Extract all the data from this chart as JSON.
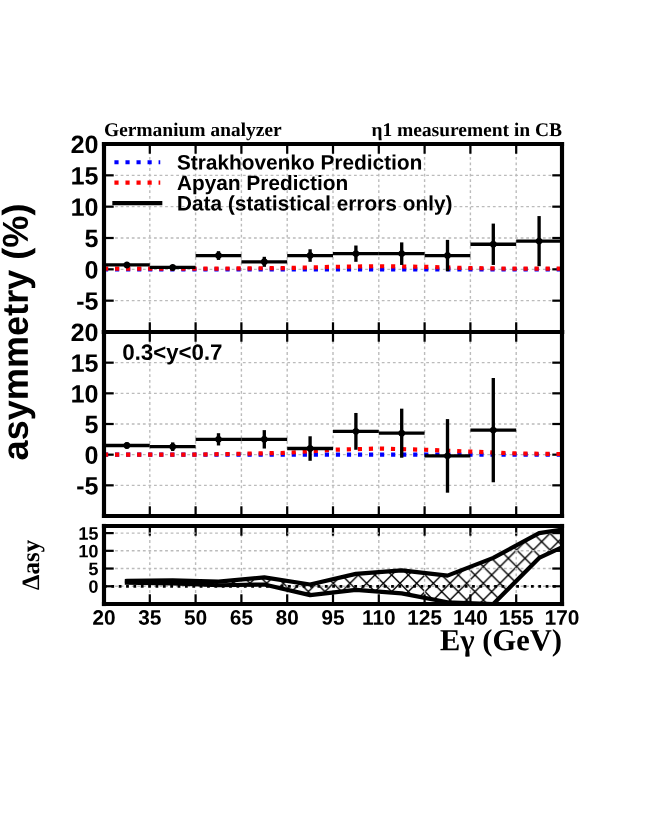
{
  "chart_data": [
    {
      "type": "scatter",
      "title": "Germanium analyzer",
      "subtitle": "η1 measurement in CB",
      "ylabel": "asymmetry (%)",
      "xlim": [
        20,
        170
      ],
      "xticks": [
        20,
        35,
        50,
        65,
        80,
        95,
        110,
        125,
        140,
        155,
        170
      ],
      "ylim": [
        -10,
        20
      ],
      "yticks": [
        -5,
        0,
        5,
        10,
        15,
        20
      ],
      "tick_labels": "y",
      "grid": true,
      "legend": "top left",
      "series": [
        {
          "name": "Strakhovenko Prediction",
          "type": "line",
          "line_style": "dotted",
          "color": "#0000ff",
          "x": [
            20,
            50,
            80,
            110,
            140,
            170
          ],
          "values": [
            0,
            0,
            0,
            0,
            0,
            0
          ]
        },
        {
          "name": "Apyan Prediction",
          "type": "line",
          "line_style": "dotted",
          "color": "#ff0000",
          "x": [
            20,
            50,
            80,
            95,
            110,
            125,
            140,
            155,
            170
          ],
          "values": [
            0.1,
            0.1,
            0.2,
            0.4,
            0.5,
            0.4,
            0.2,
            0.1,
            0.1
          ]
        },
        {
          "name": "Data (statistical errors only)",
          "color": "#000000",
          "x": [
            27.5,
            42.5,
            57.5,
            72.5,
            87.5,
            102.5,
            117.5,
            132.5,
            147.5,
            162.5
          ],
          "values": [
            0.7,
            0.3,
            2.2,
            1.2,
            2.2,
            2.5,
            2.5,
            2.2,
            4,
            4.5
          ],
          "errors": [
            0.3,
            0.3,
            0.7,
            0.8,
            1,
            1.3,
            1.8,
            2.5,
            3.3,
            4
          ],
          "xerrors": [
            7.5,
            7.5,
            7.5,
            7.5,
            7.5,
            7.5,
            7.5,
            7.5,
            7.5,
            7.5
          ]
        }
      ]
    },
    {
      "type": "scatter",
      "annotations": [
        "0.3<y<0.7"
      ],
      "xlim": [
        20,
        170
      ],
      "xticks": [
        20,
        35,
        50,
        65,
        80,
        95,
        110,
        125,
        140,
        155,
        170
      ],
      "ylim": [
        -10,
        20
      ],
      "yticks": [
        -5,
        0,
        5,
        10,
        15,
        20
      ],
      "tick_labels": "y",
      "grid": true,
      "series": [
        {
          "type": "line",
          "line_style": "dotted",
          "color": "#0000ff",
          "x": [
            20,
            50,
            80,
            110,
            140,
            170
          ],
          "values": [
            0,
            0,
            0,
            0,
            0,
            0
          ]
        },
        {
          "type": "line",
          "line_style": "dotted",
          "color": "#ff0000",
          "x": [
            20,
            50,
            80,
            95,
            110,
            125,
            140,
            155,
            170
          ],
          "values": [
            0,
            0,
            0.3,
            0.8,
            1,
            0.8,
            0.5,
            0.2,
            0.1
          ]
        },
        {
          "color": "#000000",
          "x": [
            27.5,
            42.5,
            57.5,
            72.5,
            87.5,
            102.5,
            117.5,
            132.5,
            147.5
          ],
          "values": [
            1.5,
            1.3,
            2.5,
            2.5,
            1,
            3.8,
            3.5,
            -0.2,
            4
          ],
          "errors": [
            0.5,
            0.7,
            1,
            1.5,
            2,
            3,
            4,
            6,
            8.5
          ],
          "xerrors": [
            7.5,
            7.5,
            7.5,
            7.5,
            7.5,
            7.5,
            7.5,
            7.5,
            7.5
          ]
        }
      ]
    },
    {
      "type": "area",
      "ylabel": "Δasy",
      "xlabel": "Eγ (GeV)",
      "xlim": [
        20,
        170
      ],
      "xticks": [
        20,
        35,
        50,
        65,
        80,
        95,
        110,
        125,
        140,
        155,
        170
      ],
      "ylim": [
        -5,
        17
      ],
      "yticks": [
        0,
        5,
        10,
        15
      ],
      "grid": true,
      "ref_lines": [
        {
          "axis": "y",
          "value": 0,
          "line_style": "dotted",
          "color": "#000000"
        }
      ],
      "series": [
        {
          "type": "line",
          "color": "#000000",
          "x": [
            27.5,
            42.5,
            57.5,
            72.5,
            87.5,
            102.5,
            117.5,
            132.5,
            147.5,
            162.5,
            170
          ],
          "values": [
            1.5,
            1.7,
            1.3,
            2.5,
            0.5,
            3.5,
            4.5,
            3,
            8,
            15,
            16
          ],
          "lower": [
            1,
            0.8,
            0.3,
            0.5,
            -2.5,
            -1,
            -2,
            -4.5,
            -5,
            8,
            11
          ],
          "upper": [
            1.5,
            1.7,
            1.3,
            2.5,
            0.5,
            3.5,
            4.5,
            3,
            8,
            15,
            16
          ]
        },
        {
          "type": "line",
          "color": "#000000",
          "x": [
            27.5,
            42.5,
            57.5,
            72.5,
            87.5,
            102.5,
            117.5,
            132.5,
            147.5,
            162.5,
            170
          ],
          "values": [
            1,
            0.8,
            0.3,
            0.5,
            -2.5,
            -1,
            -2,
            -4.5,
            -5,
            8,
            11
          ]
        }
      ]
    }
  ]
}
